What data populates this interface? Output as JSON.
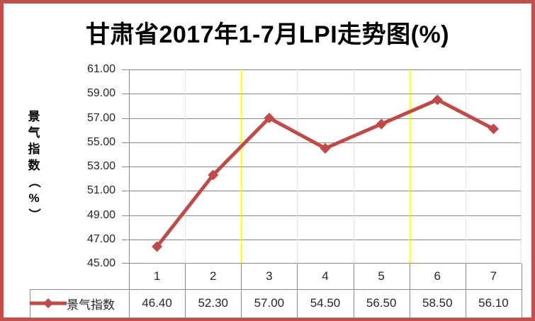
{
  "title": "甘肃省2017年1-7月LPI走势图(%)",
  "chart_data": {
    "type": "line",
    "title": "甘肃省2017年1-7月LPI走势图(%)",
    "ylabel": "景气指数（%）",
    "ylabel_chars": [
      "景",
      "气",
      "指",
      "数",
      "（",
      "%",
      "）"
    ],
    "categories": [
      "1",
      "2",
      "3",
      "4",
      "5",
      "6",
      "7"
    ],
    "series": [
      {
        "name": "景气指数",
        "values": [
          46.4,
          52.3,
          57.0,
          54.5,
          56.5,
          58.5,
          56.1
        ]
      }
    ],
    "ylim": [
      45.0,
      61.0
    ],
    "ytick_step": 2.0,
    "ytick_labels": [
      "61.00",
      "59.00",
      "57.00",
      "55.00",
      "53.00",
      "51.00",
      "49.00",
      "47.00",
      "45.00"
    ],
    "value_labels": [
      "46.40",
      "52.30",
      "57.00",
      "54.50",
      "56.50",
      "58.50",
      "56.10"
    ],
    "grid": {
      "horizontal": "on",
      "vertical": "on"
    },
    "legend_position": "bottom-data-table",
    "colors": {
      "series": "#BE4B48",
      "frame_border": "#C0504D",
      "horizontal_grid": "#8A8A8A",
      "vertical_grid": "#FFFF00",
      "table_border": "#8A8A8A",
      "text": "#262626",
      "title_text": "#000000"
    },
    "marker": "diamond"
  }
}
